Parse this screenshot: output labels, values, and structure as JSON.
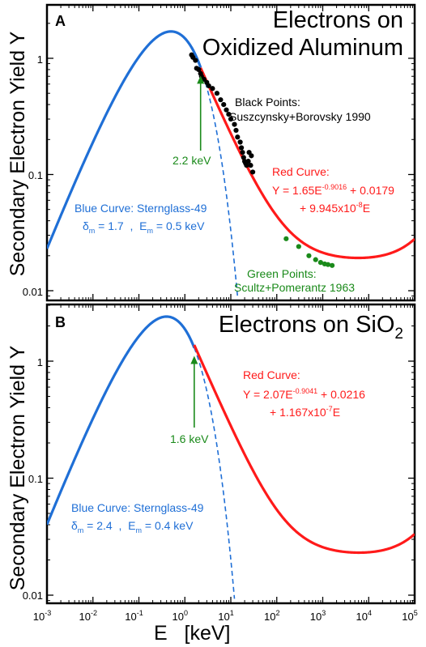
{
  "y_axis_label": "Secondary Electron Yield  Y",
  "x_axis_label": "E   [keV]",
  "x_ticks": [
    {
      "base": "10",
      "exp": "-3"
    },
    {
      "base": "10",
      "exp": "-2"
    },
    {
      "base": "10",
      "exp": "-1"
    },
    {
      "base": "10",
      "exp": "0"
    },
    {
      "base": "10",
      "exp": "1"
    },
    {
      "base": "10",
      "exp": "2"
    },
    {
      "base": "10",
      "exp": "3"
    },
    {
      "base": "10",
      "exp": "4"
    },
    {
      "base": "10",
      "exp": "5"
    }
  ],
  "colors": {
    "blue": "#1f6fd6",
    "red": "#ff1a1a",
    "green": "#1a8a1a",
    "black": "#000000"
  },
  "panels": [
    {
      "letter": "A",
      "title_line1": "Electrons on",
      "title_line2": "Oxidized Aluminum",
      "y_ticks": [
        "1",
        "0.1",
        "0.01"
      ],
      "arrow_label": "2.2 keV",
      "black_label_line1": "Black Points:",
      "black_label_line2": "Suszcynsky+Borovsky 1990",
      "red_label_line1": "Red Curve:",
      "red_label_line2": {
        "a": "Y = 1.65E",
        "a_exp": "-0.9016",
        "b": " + 0.0179"
      },
      "red_label_line3": {
        "a": "+ 9.945x10",
        "a_exp": "-8",
        "b": "E"
      },
      "blue_label_line1": "Blue Curve: Sternglass-49",
      "blue_label_line2": {
        "delta": "δ",
        "delta_sub": "m",
        "delta_val": " = 1.7  ,  E",
        "e_sub": "m",
        "e_val": " = 0.5 keV"
      },
      "green_label_line1": "Green Points:",
      "green_label_line2": "Scultz+Pomerantz 1963"
    },
    {
      "letter": "B",
      "title_line1": "Electrons on SiO",
      "title_sub": "2",
      "y_ticks": [
        "1",
        "0.1",
        "0.01"
      ],
      "arrow_label": "1.6 keV",
      "red_label_line1": "Red Curve:",
      "red_label_line2": {
        "a": "Y = 2.07E",
        "a_exp": "-0.9041",
        "b": " + 0.0216"
      },
      "red_label_line3": {
        "a": "+ 1.167x10",
        "a_exp": "-7",
        "b": "E"
      },
      "blue_label_line1": "Blue Curve: Sternglass-49",
      "blue_label_line2": {
        "delta": "δ",
        "delta_sub": "m",
        "delta_val": " = 2.4  ,  E",
        "e_sub": "m",
        "e_val": " = 0.4 keV"
      }
    }
  ],
  "chart_data": [
    {
      "type": "line",
      "title": "Electrons on Oxidized Aluminum",
      "xlabel": "E   [keV]",
      "ylabel": "Secondary Electron Yield  Y",
      "xscale": "log",
      "yscale": "log",
      "xlim": [
        0.001,
        100000
      ],
      "ylim": [
        0.007,
        3
      ],
      "series": [
        {
          "name": "Blue Curve: Sternglass-49",
          "kind": "sternglass",
          "delta_m": 1.7,
          "E_m": 0.5,
          "solid_until": 2.2,
          "dashed_until": 14
        },
        {
          "name": "Red Curve",
          "kind": "fit",
          "a": 1.65,
          "p": -0.9016,
          "b": 0.0179,
          "c": 9.945e-08,
          "x_range": [
            2.2,
            100000
          ]
        },
        {
          "name": "Black Points: Suszcynsky+Borovsky 1990",
          "kind": "points",
          "points": [
            [
              1.4,
              1.07
            ],
            [
              1.5,
              1.02
            ],
            [
              1.7,
              0.96
            ],
            [
              1.8,
              0.82
            ],
            [
              2.0,
              0.8
            ],
            [
              2.2,
              0.74
            ],
            [
              2.3,
              0.7
            ],
            [
              2.6,
              0.66
            ],
            [
              3.0,
              0.62
            ],
            [
              3.3,
              0.58
            ],
            [
              4.0,
              0.55
            ],
            [
              5.0,
              0.5
            ],
            [
              6.0,
              0.44
            ],
            [
              7.0,
              0.4
            ],
            [
              8.0,
              0.36
            ],
            [
              9.0,
              0.33
            ],
            [
              10.0,
              0.3
            ],
            [
              12.0,
              0.27
            ],
            [
              13.0,
              0.24
            ],
            [
              14.0,
              0.21
            ],
            [
              16.0,
              0.19
            ],
            [
              17.0,
              0.17
            ],
            [
              18.0,
              0.155
            ],
            [
              19.0,
              0.14
            ],
            [
              20.0,
              0.13
            ],
            [
              21.0,
              0.125
            ],
            [
              22.0,
              0.12
            ],
            [
              24.0,
              0.13
            ],
            [
              25.0,
              0.155
            ],
            [
              27.0,
              0.12
            ],
            [
              28.0,
              0.145
            ],
            [
              30.0,
              0.105
            ]
          ]
        },
        {
          "name": "Green Points: Scultz+Pomerantz 1963",
          "kind": "points",
          "points": [
            [
              160,
              0.028
            ],
            [
              300,
              0.024
            ],
            [
              500,
              0.02
            ],
            [
              700,
              0.0185
            ],
            [
              900,
              0.0175
            ],
            [
              1100,
              0.017
            ],
            [
              1300,
              0.0168
            ],
            [
              1600,
              0.0165
            ]
          ]
        }
      ],
      "annotation": {
        "text": "2.2 keV",
        "x": 2.2
      }
    },
    {
      "type": "line",
      "title": "Electrons on SiO2",
      "xlabel": "E   [keV]",
      "ylabel": "Secondary Electron Yield  Y",
      "xscale": "log",
      "yscale": "log",
      "xlim": [
        0.001,
        100000
      ],
      "ylim": [
        0.007,
        3
      ],
      "series": [
        {
          "name": "Blue Curve: Sternglass-49",
          "kind": "sternglass",
          "delta_m": 2.4,
          "E_m": 0.4,
          "solid_until": 1.6,
          "dashed_until": 12
        },
        {
          "name": "Red Curve",
          "kind": "fit",
          "a": 2.07,
          "p": -0.9041,
          "b": 0.0216,
          "c": 1.167e-07,
          "x_range": [
            1.6,
            100000
          ]
        }
      ],
      "annotation": {
        "text": "1.6 keV",
        "x": 1.6
      }
    }
  ]
}
